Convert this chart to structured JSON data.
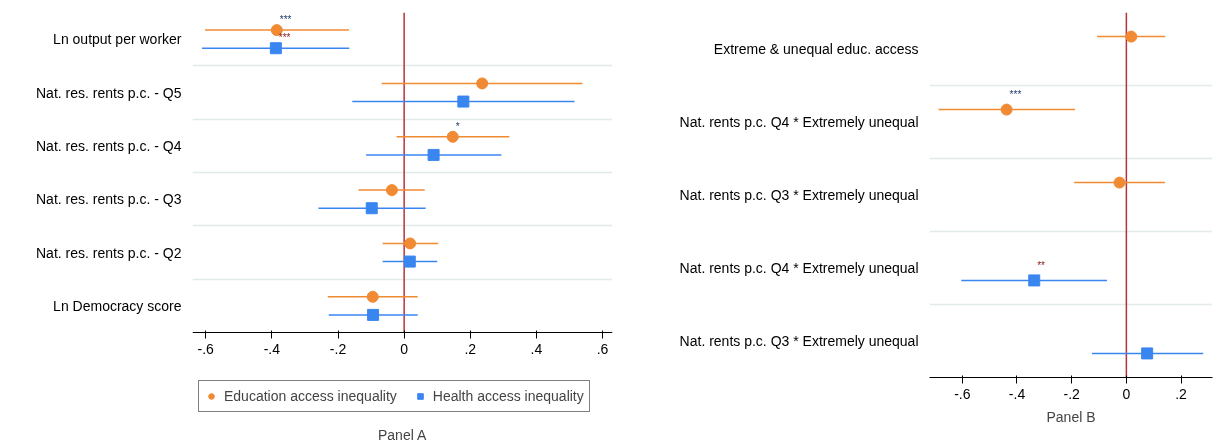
{
  "chart_data": [
    {
      "type": "scatter",
      "orientation": "horizontal",
      "xlabel": "Panel A",
      "categories": [
        "Ln output per worker",
        "Nat. res. rents p.c. - Q5",
        "Nat. res. rents p.c. - Q4",
        "Nat. res. rents p.c. - Q3",
        "Nat. res. rents p.c. - Q2",
        "Ln Democracy score"
      ],
      "series": [
        {
          "name": "Education access inequality",
          "color": "#f08a33",
          "marker": "circle",
          "values": [
            -0.385,
            0.236,
            0.147,
            -0.037,
            0.018,
            -0.095
          ],
          "errors": [
            [
              -0.602,
              -0.167
            ],
            [
              -0.068,
              0.539
            ],
            [
              -0.023,
              0.318
            ],
            [
              -0.138,
              0.062
            ],
            [
              -0.065,
              0.103
            ],
            [
              -0.231,
              0.041
            ]
          ],
          "value_labels": [
            "***",
            null,
            "*",
            null,
            null,
            null
          ]
        },
        {
          "name": "Health access inequality",
          "color": "#3a86f0",
          "marker": "square",
          "values": [
            -0.388,
            0.179,
            0.089,
            -0.098,
            0.017,
            -0.094
          ],
          "errors": [
            [
              -0.611,
              -0.166
            ],
            [
              -0.157,
              0.515
            ],
            [
              -0.115,
              0.294
            ],
            [
              -0.259,
              0.065
            ],
            [
              -0.065,
              0.1
            ],
            [
              -0.228,
              0.041
            ]
          ],
          "value_labels": [
            "***",
            null,
            null,
            null,
            null,
            null
          ]
        }
      ],
      "xlim": [
        -0.64,
        0.63
      ],
      "xticks": [
        {
          "value": -0.6,
          "label": "-.6"
        },
        {
          "value": -0.4,
          "label": "-.4"
        },
        {
          "value": -0.2,
          "label": "-.2"
        },
        0,
        {
          "value": 0.2,
          "label": ".2"
        },
        {
          "value": 0.4,
          "label": ".4"
        },
        {
          "value": 0.6,
          "label": ".6"
        }
      ],
      "ref_lines": [
        {
          "axis": "x",
          "value": 0,
          "color": "#b5343a"
        }
      ],
      "grid": "y",
      "legend": "bottom"
    },
    {
      "type": "scatter",
      "orientation": "horizontal",
      "xlabel": "Panel B",
      "categories": [
        "Extreme & unequal educ. access",
        "Nat. rents p.c. Q4 * Extremely unequal",
        "Nat. rents p.c. Q3 * Extremely unequal",
        "Nat. rents p.c. Q4 * Extremely unequal",
        "Nat. rents p.c. Q3 * Extremely unequal"
      ],
      "series": [
        {
          "color": "#f08a33",
          "marker": "circle",
          "values": [
            0.018,
            -0.438,
            -0.025,
            null,
            null
          ],
          "errors": [
            [
              -0.107,
              0.142
            ],
            [
              -0.687,
              -0.188
            ],
            [
              -0.191,
              0.141
            ],
            null,
            null
          ],
          "value_labels": [
            null,
            "***",
            null,
            null,
            null
          ]
        },
        {
          "color": "#3a86f0",
          "marker": "square",
          "values": [
            null,
            null,
            null,
            -0.337,
            0.076
          ],
          "errors": [
            null,
            null,
            null,
            [
              -0.604,
              -0.071
            ],
            [
              -0.126,
              0.281
            ]
          ],
          "value_labels": [
            null,
            null,
            null,
            "**",
            null
          ]
        }
      ],
      "xlim": [
        -0.72,
        0.315
      ],
      "xticks": [
        {
          "value": -0.6,
          "label": "-.6"
        },
        {
          "value": -0.4,
          "label": "-.4"
        },
        {
          "value": -0.2,
          "label": "-.2"
        },
        0,
        {
          "value": 0.2,
          "label": ".2"
        }
      ],
      "ref_lines": [
        {
          "axis": "x",
          "value": 0,
          "color": "#b5343a"
        }
      ],
      "grid": "y",
      "legend": false
    }
  ]
}
